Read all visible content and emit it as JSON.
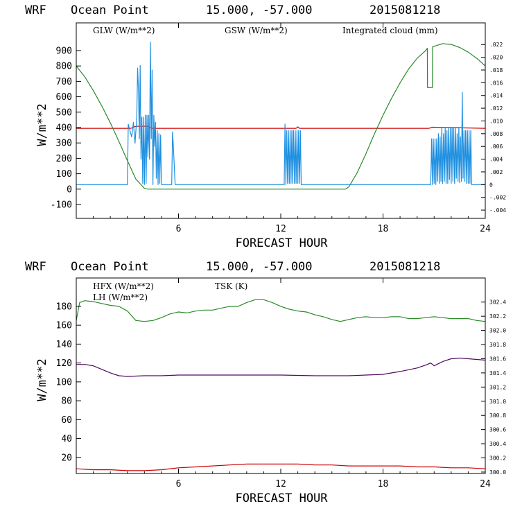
{
  "colors": {
    "glw": "#cc0000",
    "gsw": "#2a8a2a",
    "cloud": "#1f8fe0",
    "hfx": "#cc0000",
    "lh": "#2a8a2a",
    "tsk": "#500a60"
  },
  "chart_data": [
    {
      "type": "line",
      "title_parts": [
        "WRF",
        "Ocean Point",
        "15.000, -57.000",
        "2015081218"
      ],
      "xlabel": "FORECAST HOUR",
      "ylabel": "W/m**2",
      "xlim": [
        0,
        24
      ],
      "ylim": [
        -190,
        1080
      ],
      "y2lim": [
        -0.0053,
        0.0254
      ],
      "xticks": [
        6,
        12,
        18,
        24
      ],
      "yticks": [
        -100,
        0,
        100,
        200,
        300,
        400,
        500,
        600,
        700,
        800,
        900
      ],
      "y2ticks": [
        ".022",
        ".020",
        ".018",
        ".016",
        ".014",
        ".012",
        ".010",
        ".008",
        ".006",
        ".004",
        ".002",
        "0",
        "-.002",
        "-.004"
      ],
      "legend": [
        "GLW (W/m**2)",
        "GSW (W/m**2)",
        "Integrated cloud (mm)"
      ],
      "series": [
        {
          "name": "GLW (W/m**2)",
          "axis": "left",
          "x": [
            0,
            3.2,
            3.5,
            4.2,
            4.4,
            12.9,
            13.0,
            13.1,
            20.7,
            20.9,
            24
          ],
          "y": [
            395,
            395,
            408,
            408,
            395,
            395,
            405,
            395,
            395,
            402,
            395
          ]
        },
        {
          "name": "GSW (W/m**2)",
          "axis": "left",
          "x": [
            0,
            0.5,
            1,
            1.5,
            2,
            2.5,
            3,
            3.5,
            4,
            4.2,
            4.4,
            15.8,
            16,
            16.5,
            17,
            17.5,
            18,
            18.5,
            19,
            19.5,
            20,
            20.5,
            20.6,
            20.61,
            20.9,
            20.91,
            21.5,
            22,
            22.5,
            23,
            23.5,
            24
          ],
          "y": [
            800,
            730,
            640,
            540,
            430,
            310,
            185,
            65,
            5,
            0,
            0,
            0,
            15,
            110,
            230,
            360,
            480,
            590,
            690,
            780,
            850,
            900,
            915,
            660,
            660,
            925,
            945,
            940,
            920,
            890,
            850,
            800
          ]
        },
        {
          "name": "Integrated cloud (mm)",
          "axis": "right",
          "x": [
            0,
            3.0,
            3.05,
            3.15,
            3.25,
            3.35,
            3.45,
            3.55,
            3.6,
            3.65,
            3.7,
            3.75,
            3.8,
            3.85,
            3.9,
            3.95,
            4.0,
            4.05,
            4.1,
            4.15,
            4.2,
            4.25,
            4.3,
            4.35,
            4.4,
            4.45,
            4.5,
            4.55,
            4.6,
            4.65,
            4.7,
            4.75,
            4.8,
            4.85,
            4.9,
            4.95,
            5.0,
            5.2,
            5.6,
            5.65,
            5.7,
            5.75,
            5.8,
            12.2,
            12.25,
            12.3,
            12.35,
            12.4,
            12.45,
            12.5,
            12.55,
            12.6,
            12.65,
            12.7,
            12.75,
            12.8,
            12.85,
            12.9,
            12.95,
            13.0,
            13.05,
            13.1,
            13.15,
            13.2,
            20.8,
            20.85,
            20.9,
            20.95,
            21.0,
            21.05,
            21.1,
            21.15,
            21.2,
            21.25,
            21.3,
            21.35,
            21.4,
            21.45,
            21.5,
            21.55,
            21.6,
            21.65,
            21.7,
            21.75,
            21.8,
            21.85,
            21.9,
            21.95,
            22.0,
            22.05,
            22.1,
            22.15,
            22.2,
            22.25,
            22.3,
            22.35,
            22.4,
            22.45,
            22.5,
            22.55,
            22.6,
            22.65,
            22.7,
            22.75,
            22.8,
            22.85,
            22.9,
            22.95,
            23.0,
            23.05,
            23.1,
            23.15,
            23.2,
            23.3,
            24
          ],
          "y": [
            0,
            0,
            0.0095,
            0.0085,
            0.0075,
            0.0098,
            0.0065,
            0.0105,
            0.0183,
            0.015,
            0.0072,
            0.0187,
            0.004,
            0.0106,
            0.0002,
            0.0106,
            0.0,
            0.0109,
            0.0002,
            0.0109,
            0.0043,
            0.0109,
            0.004,
            0.0224,
            0.0072,
            0.018,
            0.0,
            0.0109,
            0.006,
            0.0098,
            0.001,
            0.0085,
            0.0,
            0.008,
            0.0002,
            0.0078,
            0.0,
            0.0,
            0.0,
            0.0083,
            0.006,
            0.003,
            0.0,
            0.0,
            0.0095,
            0.0,
            0.0085,
            0.0002,
            0.0085,
            0.0002,
            0.0085,
            0.0002,
            0.0085,
            0.0002,
            0.0085,
            0.0002,
            0.0085,
            0.0002,
            0.0085,
            0.0002,
            0.0085,
            0.0002,
            0.0085,
            0.0,
            0.0,
            0.0072,
            0.0,
            0.0072,
            0.0002,
            0.0072,
            0.0,
            0.0072,
            0.0005,
            0.008,
            0.0002,
            0.0075,
            0.0005,
            0.009,
            0.0002,
            0.008,
            0.0005,
            0.0088,
            0.0002,
            0.0085,
            0.0002,
            0.009,
            0.0008,
            0.0088,
            0.0002,
            0.009,
            0.0005,
            0.0088,
            0.0002,
            0.009,
            0.001,
            0.008,
            0.0005,
            0.009,
            0.0003,
            0.0075,
            0.0005,
            0.0145,
            0.001,
            0.0085,
            0.0005,
            0.0085,
            0.0002,
            0.0085,
            0.0002,
            0.0085,
            0.0002,
            0.0085,
            0.0,
            0.0,
            0.0
          ]
        }
      ]
    },
    {
      "type": "line",
      "title_parts": [
        "WRF",
        "Ocean Point",
        "15.000, -57.000",
        "2015081218"
      ],
      "xlabel": "FORECAST HOUR",
      "ylabel": "W/m**2",
      "xlim": [
        0,
        24
      ],
      "ylim": [
        3,
        210
      ],
      "y2lim": [
        299.98,
        302.74
      ],
      "xticks": [
        6,
        12,
        18,
        24
      ],
      "yticks": [
        20,
        40,
        60,
        80,
        100,
        120,
        140,
        160,
        180
      ],
      "y2ticks": [
        "302.4",
        "302.2",
        "302.0",
        "301.8",
        "301.6",
        "301.4",
        "301.2",
        "301.0",
        "300.8",
        "300.6",
        "300.4",
        "300.2",
        "300.0"
      ],
      "legend": [
        "HFX (W/m**2)",
        "LH (W/m**2)",
        "TSK (K)"
      ],
      "series": [
        {
          "name": "HFX (W/m**2)",
          "axis": "left",
          "x": [
            0,
            1,
            2,
            3,
            4,
            5,
            6,
            7,
            8,
            9,
            10,
            11,
            12,
            13,
            14,
            15,
            16,
            17,
            18,
            19,
            20,
            21,
            22,
            23,
            24
          ],
          "y": [
            8,
            7,
            7,
            6,
            6,
            7,
            9,
            10,
            11,
            12,
            13,
            13,
            13,
            13,
            12,
            12,
            11,
            11,
            11,
            11,
            10,
            10,
            9,
            9,
            8
          ]
        },
        {
          "name": "LH (W/m**2)",
          "axis": "left",
          "x": [
            0,
            0.2,
            0.5,
            1,
            1.5,
            2,
            2.5,
            3,
            3.5,
            4,
            4.5,
            5,
            5.5,
            6,
            6.5,
            7,
            7.5,
            8,
            8.5,
            9,
            9.5,
            10,
            10.5,
            11,
            11.5,
            12,
            12.5,
            13,
            13.5,
            14,
            14.5,
            15,
            15.5,
            16,
            16.5,
            17,
            17.5,
            18,
            18.5,
            19,
            19.5,
            20,
            20.5,
            21,
            21.5,
            22,
            22.5,
            23,
            23.5,
            24
          ],
          "y": [
            165,
            184,
            186,
            185,
            183,
            181,
            180,
            175,
            165,
            164,
            165,
            168,
            172,
            174,
            173,
            175,
            176,
            176,
            178,
            180,
            180,
            184,
            187,
            187,
            184,
            180,
            177,
            175,
            174,
            171,
            169,
            166,
            164,
            166,
            168,
            169,
            168,
            168,
            169,
            169,
            167,
            167,
            168,
            169,
            168,
            167,
            167,
            167,
            165,
            164
          ]
        },
        {
          "name": "TSK (K)",
          "axis": "right",
          "x": [
            0,
            0.5,
            1,
            1.5,
            2,
            2.5,
            3,
            4,
            5,
            6,
            8,
            10,
            12,
            14,
            16,
            17,
            18,
            19,
            20,
            20.5,
            20.8,
            21,
            21.5,
            22,
            22.5,
            23,
            24
          ],
          "y": [
            301.52,
            301.52,
            301.5,
            301.45,
            301.4,
            301.36,
            301.35,
            301.36,
            301.36,
            301.37,
            301.37,
            301.37,
            301.37,
            301.36,
            301.36,
            301.37,
            301.38,
            301.42,
            301.47,
            301.51,
            301.54,
            301.5,
            301.56,
            301.6,
            301.61,
            301.6,
            301.58
          ]
        }
      ]
    }
  ]
}
